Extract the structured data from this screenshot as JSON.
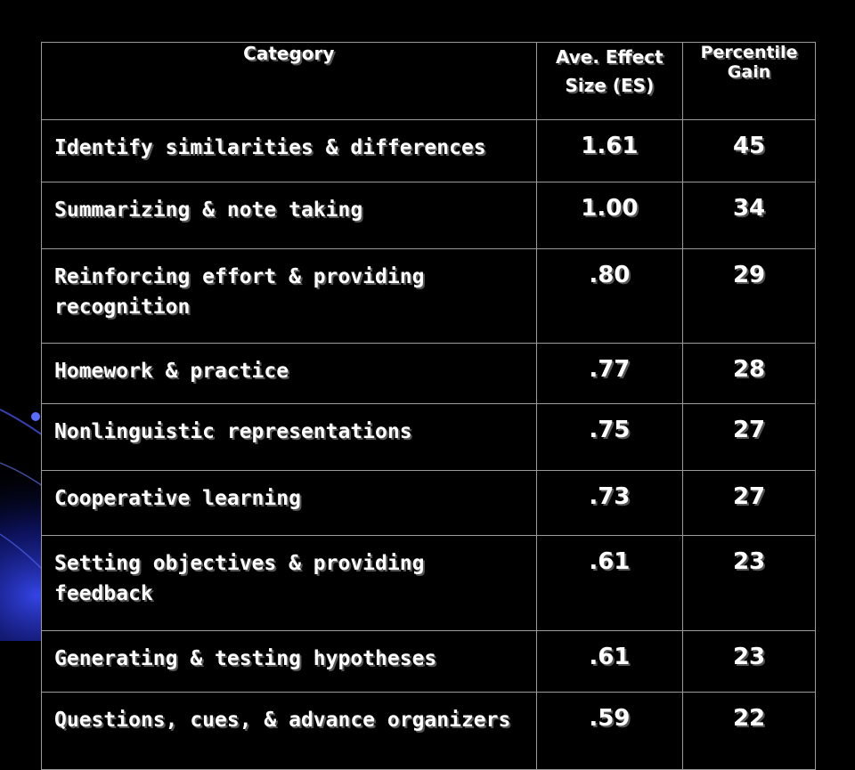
{
  "slide": {
    "colors": {
      "background": "#000000",
      "text": "#ffffff",
      "border": "#9a9a9a",
      "accent": "#2a3cff"
    },
    "headers": {
      "category": "Category",
      "effect_line1": "Ave. Effect",
      "effect_line2": "Size (ES)",
      "gain_line1": "Percentile",
      "gain_line2": "Gain"
    },
    "rows": [
      {
        "category": "Identify similarities & differences",
        "es": "1.61",
        "gain": "45"
      },
      {
        "category": "Summarizing & note taking",
        "es": "1.00",
        "gain": "34"
      },
      {
        "category": "Reinforcing effort & providing recognition",
        "es": ".80",
        "gain": "29"
      },
      {
        "category": "Homework & practice",
        "es": ".77",
        "gain": "28"
      },
      {
        "category": "Nonlinguistic representations",
        "es": ".75",
        "gain": "27"
      },
      {
        "category": "Cooperative learning",
        "es": ".73",
        "gain": "27"
      },
      {
        "category": "Setting objectives & providing feedback",
        "es": ".61",
        "gain": "23"
      },
      {
        "category": "Generating & testing hypotheses",
        "es": ".61",
        "gain": "23"
      },
      {
        "category": "Questions, cues, & advance organizers",
        "es": ".59",
        "gain": "22"
      }
    ]
  }
}
